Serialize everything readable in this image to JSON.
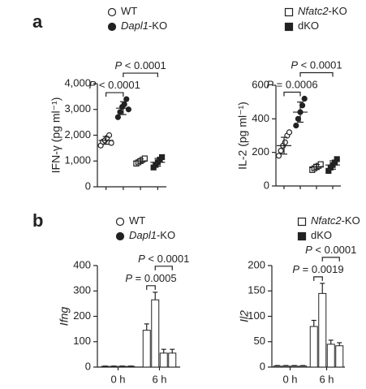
{
  "panels": [
    {
      "label": "a",
      "legend": [
        {
          "name": "WT",
          "shape": "circle",
          "filled": false
        },
        {
          "italic": "Dapl1",
          "name": "-KO",
          "shape": "circle",
          "filled": true
        },
        {
          "italic": "Nfatc2",
          "name": "-KO",
          "shape": "square",
          "filled": false
        },
        {
          "name": "dKO",
          "shape": "square",
          "filled": true
        }
      ]
    },
    {
      "label": "b",
      "legend": [
        {
          "name": "WT",
          "shape": "circle",
          "filled": false
        },
        {
          "italic": "Dapl1",
          "name": "-KO",
          "shape": "circle",
          "filled": true
        },
        {
          "italic": "Nfatc2",
          "name": "-KO",
          "shape": "square",
          "filled": false
        },
        {
          "name": "dKO",
          "shape": "square",
          "filled": true
        }
      ]
    }
  ],
  "chart_data": [
    {
      "type": "dot",
      "panel": 0,
      "ylabel": "IFN-γ (pg ml⁻¹)",
      "ylim": [
        0,
        4000
      ],
      "yticks": [
        0,
        {
          "value": 1000,
          "label": "1,000"
        },
        {
          "value": 2000,
          "label": "2,000"
        },
        {
          "value": 3000,
          "label": "3,000"
        },
        {
          "value": 4000,
          "label": "4,000"
        }
      ],
      "series": [
        {
          "values": [
            1600,
            1750,
            1800,
            1900,
            2000,
            1700
          ],
          "mean": 1800,
          "sd": 150
        },
        {
          "values": [
            2700,
            2900,
            3100,
            3200,
            3400,
            3000
          ],
          "mean": 3050,
          "sd": 250
        },
        {
          "values": [
            900,
            950,
            1000,
            1050,
            1100
          ],
          "mean": 1000,
          "sd": 80
        },
        {
          "values": [
            750,
            850,
            950,
            1050,
            1150
          ],
          "mean": 950,
          "sd": 150
        }
      ],
      "annotations": [
        {
          "italic": "P",
          "text": " < 0.0001",
          "groups": [
            0,
            1
          ]
        },
        {
          "italic": "P",
          "text": " < 0.0001",
          "groups": [
            1,
            3
          ]
        }
      ]
    },
    {
      "type": "dot",
      "panel": 0,
      "ylabel": "IL-2 (pg ml⁻¹)",
      "ylim": [
        0,
        600
      ],
      "yticks": [
        0,
        200,
        400,
        600
      ],
      "series": [
        {
          "values": [
            180,
            210,
            240,
            260,
            300,
            320
          ],
          "mean": 240,
          "sd": 50
        },
        {
          "values": [
            360,
            400,
            440,
            480,
            520
          ],
          "mean": 440,
          "sd": 60
        },
        {
          "values": [
            95,
            105,
            115,
            120,
            130
          ],
          "mean": 113,
          "sd": 15
        },
        {
          "values": [
            90,
            110,
            125,
            140,
            160
          ],
          "mean": 125,
          "sd": 25
        }
      ],
      "annotations": [
        {
          "italic": "P",
          "text": " = 0.0006",
          "groups": [
            0,
            1
          ]
        },
        {
          "italic": "P",
          "text": " < 0.0001",
          "groups": [
            1,
            3
          ]
        }
      ]
    },
    {
      "type": "bar",
      "panel": 1,
      "ylabel": "Ifng",
      "ylabel_italic": true,
      "categories": [
        "0 h",
        "6 h"
      ],
      "ylim": [
        0,
        400
      ],
      "yticks": [
        0,
        100,
        200,
        300,
        400
      ],
      "series": [
        {
          "values": [
            3,
            145
          ],
          "errors": [
            1,
            25
          ]
        },
        {
          "values": [
            3,
            265
          ],
          "errors": [
            1,
            30
          ]
        },
        {
          "values": [
            3,
            55
          ],
          "errors": [
            1,
            15
          ]
        },
        {
          "values": [
            3,
            55
          ],
          "errors": [
            1,
            15
          ]
        }
      ],
      "annotations": [
        {
          "italic": "P",
          "text": " = 0.0005",
          "groups": [
            0,
            1
          ],
          "category": 1
        },
        {
          "italic": "P",
          "text": " < 0.0001",
          "groups": [
            1,
            3
          ],
          "category": 1
        }
      ]
    },
    {
      "type": "bar",
      "panel": 1,
      "ylabel": "Il2",
      "ylabel_italic": true,
      "categories": [
        "0 h",
        "6 h"
      ],
      "ylim": [
        0,
        200
      ],
      "yticks": [
        0,
        50,
        100,
        150,
        200
      ],
      "series": [
        {
          "values": [
            2,
            80
          ],
          "errors": [
            1,
            12
          ]
        },
        {
          "values": [
            2,
            145
          ],
          "errors": [
            1,
            20
          ]
        },
        {
          "values": [
            2,
            45
          ],
          "errors": [
            1,
            8
          ]
        },
        {
          "values": [
            2,
            42
          ],
          "errors": [
            1,
            6
          ]
        }
      ],
      "annotations": [
        {
          "italic": "P",
          "text": " = 0.0019",
          "groups": [
            0,
            1
          ],
          "category": 1
        },
        {
          "italic": "P",
          "text": " < 0.0001",
          "groups": [
            1,
            3
          ],
          "category": 1
        }
      ]
    }
  ]
}
